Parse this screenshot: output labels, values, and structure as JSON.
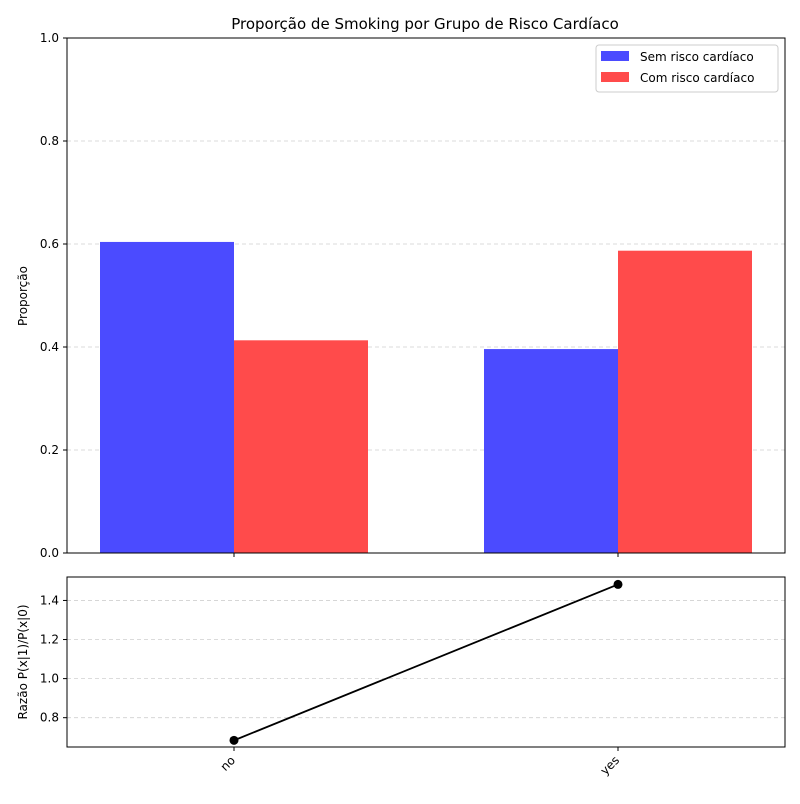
{
  "chart_data": [
    {
      "type": "bar",
      "title": "Proporção de Smoking por Grupo de Risco Cardíaco",
      "ylabel": "Proporção",
      "xlabel": "",
      "categories": [
        "no",
        "yes"
      ],
      "ylim": [
        0,
        1.0
      ],
      "yticks": [
        "0.0",
        "0.2",
        "0.4",
        "0.6",
        "0.8",
        "1.0"
      ],
      "grid": true,
      "legend_position": "top-right",
      "series": [
        {
          "name": "Sem risco cardíaco",
          "color": "#4b4bff",
          "values": [
            0.604,
            0.396
          ]
        },
        {
          "name": "Com risco cardíaco",
          "color": "#ff4b4b",
          "values": [
            0.413,
            0.587
          ]
        }
      ]
    },
    {
      "type": "line",
      "title": "",
      "ylabel": "Razão P(x|1)/P(x|0)",
      "xlabel": "",
      "categories": [
        "no",
        "yes"
      ],
      "ylim": [
        0.65,
        1.52
      ],
      "yticks": [
        "0.8",
        "1.0",
        "1.2",
        "1.4"
      ],
      "grid": true,
      "series": [
        {
          "color": "#000000",
          "values": [
            0.684,
            1.482
          ]
        }
      ]
    }
  ]
}
